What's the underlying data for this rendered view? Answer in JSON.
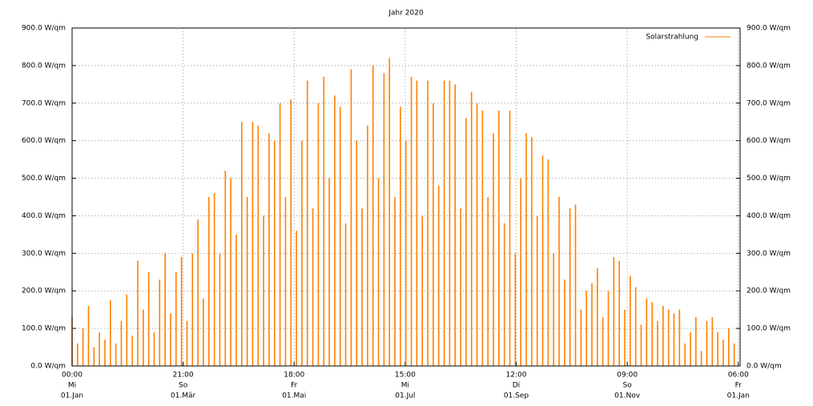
{
  "chart_data": {
    "type": "spike",
    "title": "Jahr 2020",
    "series": [
      {
        "name": "Solarstrahlung",
        "color": "#ff7f00",
        "x": [
          0,
          3,
          6,
          9,
          12,
          15,
          18,
          21,
          24,
          27,
          30,
          33,
          36,
          39,
          42,
          45,
          48,
          51,
          54,
          57,
          60,
          63,
          66,
          69,
          72,
          75,
          78,
          81,
          84,
          87,
          90,
          93,
          96,
          99,
          102,
          105,
          108,
          111,
          114,
          117,
          120,
          123,
          126,
          129,
          132,
          135,
          138,
          141,
          144,
          147,
          150,
          153,
          156,
          159,
          162,
          165,
          168,
          171,
          174,
          177,
          180,
          183,
          186,
          189,
          192,
          195,
          198,
          201,
          204,
          207,
          210,
          213,
          216,
          219,
          222,
          225,
          228,
          231,
          234,
          237,
          240,
          243,
          246,
          249,
          252,
          255,
          258,
          261,
          264,
          267,
          270,
          273,
          276,
          279,
          282,
          285,
          288,
          291,
          294,
          297,
          300,
          303,
          306,
          309,
          312,
          315,
          318,
          321,
          324,
          327,
          330,
          333,
          336,
          339,
          342,
          345,
          348,
          351,
          354,
          357,
          360,
          363
        ],
        "values": [
          130,
          60,
          100,
          160,
          50,
          90,
          70,
          175,
          60,
          120,
          190,
          80,
          280,
          150,
          250,
          90,
          230,
          300,
          140,
          250,
          290,
          120,
          300,
          390,
          180,
          450,
          460,
          300,
          520,
          500,
          350,
          650,
          450,
          650,
          640,
          400,
          620,
          600,
          700,
          450,
          710,
          360,
          600,
          760,
          420,
          700,
          770,
          500,
          720,
          690,
          380,
          790,
          600,
          420,
          640,
          800,
          500,
          780,
          820,
          450,
          690,
          600,
          770,
          760,
          400,
          760,
          700,
          480,
          760,
          760,
          750,
          420,
          660,
          730,
          700,
          680,
          450,
          620,
          680,
          380,
          680,
          300,
          500,
          620,
          610,
          400,
          560,
          550,
          300,
          450,
          230,
          420,
          430,
          150,
          200,
          220,
          260,
          130,
          200,
          290,
          280,
          150,
          240,
          210,
          110,
          180,
          170,
          120,
          160,
          150,
          140,
          150,
          60,
          90,
          130,
          40,
          120,
          130,
          90,
          70,
          100,
          60
        ]
      }
    ],
    "xlim": [
      0,
      366.25
    ],
    "xticks": [
      {
        "value": 0,
        "label": [
          "00:00",
          "Mi",
          "01.Jan"
        ]
      },
      {
        "value": 60.875,
        "label": [
          "21:00",
          "So",
          "01.Mär"
        ]
      },
      {
        "value": 121.75,
        "label": [
          "18:00",
          "Fr",
          "01.Mai"
        ]
      },
      {
        "value": 182.625,
        "label": [
          "15:00",
          "Mi",
          "01.Jul"
        ]
      },
      {
        "value": 243.5,
        "label": [
          "12:00",
          "Di",
          "01.Sep"
        ]
      },
      {
        "value": 304.375,
        "label": [
          "09:00",
          "So",
          "01.Nov"
        ]
      },
      {
        "value": 365.25,
        "label": [
          "06:00",
          "Fr",
          "01.Jan"
        ]
      }
    ],
    "ylim": [
      0,
      900
    ],
    "yticks": [
      {
        "value": 0,
        "label": "0.0 W/qm"
      },
      {
        "value": 100,
        "label": "100.0 W/qm"
      },
      {
        "value": 200,
        "label": "200.0 W/qm"
      },
      {
        "value": 300,
        "label": "300.0 W/qm"
      },
      {
        "value": 400,
        "label": "400.0 W/qm"
      },
      {
        "value": 500,
        "label": "500.0 W/qm"
      },
      {
        "value": 600,
        "label": "600.0 W/qm"
      },
      {
        "value": 700,
        "label": "700.0 W/qm"
      },
      {
        "value": 800,
        "label": "800.0 W/qm"
      },
      {
        "value": 900,
        "label": "900.0 W/qm"
      }
    ],
    "grid": true,
    "legend": "top-right"
  }
}
